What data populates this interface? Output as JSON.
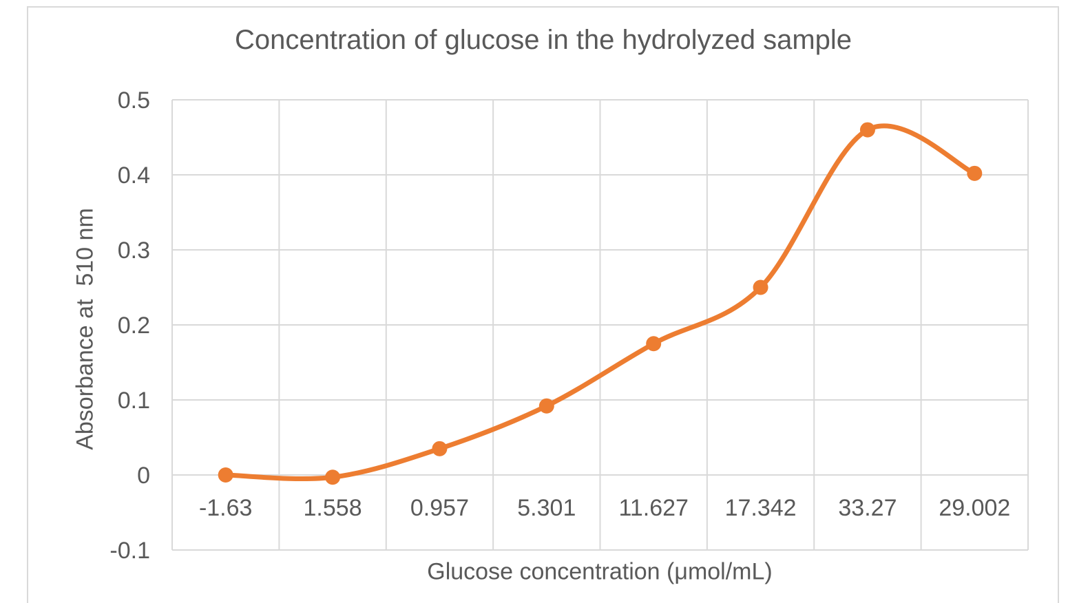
{
  "chart_data": {
    "type": "line",
    "title": "Concentration of glucose in the hydrolyzed sample",
    "xlabel": "Glucose concentration (μmol/mL)",
    "ylabel": "Absorbance at  510 nm",
    "categories": [
      "-1.63",
      "1.558",
      "0.957",
      "5.301",
      "11.627",
      "17.342",
      "33.27",
      "29.002"
    ],
    "values": [
      0.0,
      -0.003,
      0.035,
      0.092,
      0.175,
      0.25,
      0.46,
      0.402
    ],
    "y_ticks": [
      {
        "label": "0.5",
        "value": 0.5
      },
      {
        "label": "0.4",
        "value": 0.4
      },
      {
        "label": "0.3",
        "value": 0.3
      },
      {
        "label": "0.2",
        "value": 0.2
      },
      {
        "label": "0.1",
        "value": 0.1
      },
      {
        "label": "0",
        "value": 0.0
      },
      {
        "label": "-0.1",
        "value": -0.1
      }
    ],
    "ylim": [
      -0.1,
      0.5
    ],
    "grid": true,
    "legend_position": "none",
    "line_smooth": true,
    "marker": "circle",
    "colors": {
      "series_line": "#ED7D31",
      "marker_fill": "#ED7D31",
      "gridline": "#D9D9D9",
      "frame_border": "#D9D9D9",
      "text": "#595959",
      "background": "#FFFFFF"
    }
  }
}
